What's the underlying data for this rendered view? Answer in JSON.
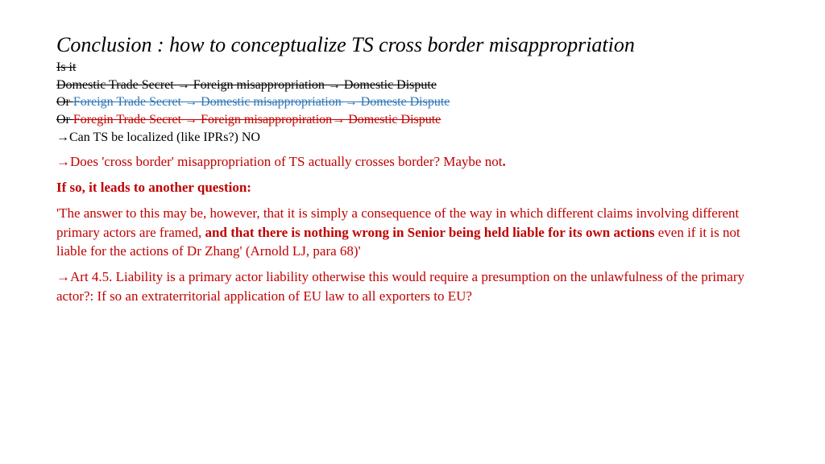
{
  "title": "Conclusion : how to conceptualize TS cross border misappropriation",
  "l1": "Is it",
  "l2a": "Domestic Trade Secret ",
  "l2b": " Foreign misappropriation ",
  "l2c": " Domestic Dispute",
  "l3a": "Or ",
  "l3b": "Foreign Trade Secret ",
  "l3c": " Domestic misappropriation ",
  "l3d": " Domeste Dispute",
  "l4a": "Or ",
  "l4b": "Foregin Trade Secret ",
  "l4c": " Foreign misappropiration",
  "l4d": " Domestic Dispute",
  "l5": "Can TS be localized (like IPRs?) NO",
  "l6": "Does 'cross border' misappropriation of TS actually crosses border? Maybe not",
  "l6end": ".",
  "l7": "If so, it leads to another question:",
  "l8a": " 'The answer to this may be, however, that it is simply a consequence of the way in which different claims involving different primary actors are framed, ",
  "l8b": "and that there is nothing wrong in Senior being held liable for its own actions",
  "l8c": " even if it is not liable for the actions of Dr Zhang'  (Arnold LJ, para 68)'",
  "l9": "Art 4.5. Liability is a primary actor liability otherwise this would require a presumption on the unlawfulness of the primary actor?: If so an extraterritorial application of EU law to all exporters to EU?",
  "arrow": "→"
}
